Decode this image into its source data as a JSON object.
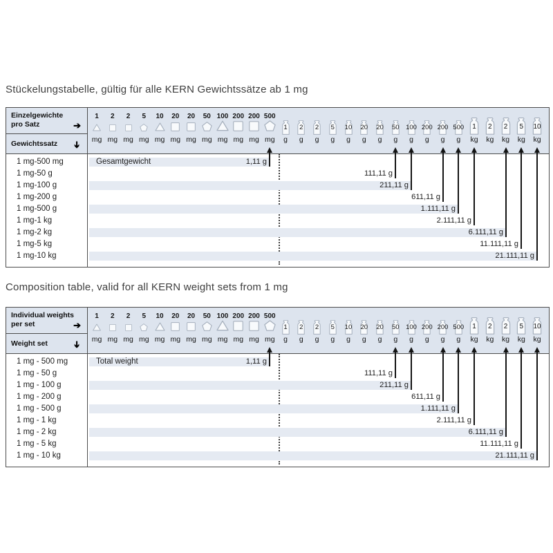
{
  "titles": {
    "de": "Stückelungstabelle, gültig für alle KERN Gewichtssätze ab 1 mg",
    "en": "Composition table, valid for all KERN weight sets from 1 mg"
  },
  "icons": {
    "right_arrow": "➔",
    "down_arrow": "➔"
  },
  "columns": [
    {
      "value": "1",
      "unit": "mg",
      "shape": "triangle",
      "size": "s"
    },
    {
      "value": "2",
      "unit": "mg",
      "shape": "square",
      "size": "s"
    },
    {
      "value": "2",
      "unit": "mg",
      "shape": "square",
      "size": "s"
    },
    {
      "value": "5",
      "unit": "mg",
      "shape": "pentagon",
      "size": "s"
    },
    {
      "value": "10",
      "unit": "mg",
      "shape": "triangle",
      "size": "m"
    },
    {
      "value": "20",
      "unit": "mg",
      "shape": "square",
      "size": "m"
    },
    {
      "value": "20",
      "unit": "mg",
      "shape": "square",
      "size": "m"
    },
    {
      "value": "50",
      "unit": "mg",
      "shape": "pentagon",
      "size": "m"
    },
    {
      "value": "100",
      "unit": "mg",
      "shape": "triangle",
      "size": "l"
    },
    {
      "value": "200",
      "unit": "mg",
      "shape": "square",
      "size": "l"
    },
    {
      "value": "200",
      "unit": "mg",
      "shape": "square",
      "size": "l"
    },
    {
      "value": "500",
      "unit": "mg",
      "shape": "pentagon",
      "size": "l"
    },
    {
      "value": "1",
      "unit": "g",
      "shape": "weight",
      "size": "s"
    },
    {
      "value": "2",
      "unit": "g",
      "shape": "weight",
      "size": "s"
    },
    {
      "value": "2",
      "unit": "g",
      "shape": "weight",
      "size": "s"
    },
    {
      "value": "5",
      "unit": "g",
      "shape": "weight",
      "size": "s"
    },
    {
      "value": "10",
      "unit": "g",
      "shape": "weight",
      "size": "s"
    },
    {
      "value": "20",
      "unit": "g",
      "shape": "weight",
      "size": "s"
    },
    {
      "value": "20",
      "unit": "g",
      "shape": "weight",
      "size": "s"
    },
    {
      "value": "50",
      "unit": "g",
      "shape": "weight",
      "size": "s"
    },
    {
      "value": "100",
      "unit": "g",
      "shape": "weight",
      "size": "s"
    },
    {
      "value": "200",
      "unit": "g",
      "shape": "weight",
      "size": "s"
    },
    {
      "value": "200",
      "unit": "g",
      "shape": "weight",
      "size": "s"
    },
    {
      "value": "500",
      "unit": "g",
      "shape": "weight",
      "size": "s"
    },
    {
      "value": "1",
      "unit": "kg",
      "shape": "weight",
      "size": "l"
    },
    {
      "value": "2",
      "unit": "kg",
      "shape": "weight",
      "size": "l"
    },
    {
      "value": "2",
      "unit": "kg",
      "shape": "weight",
      "size": "l"
    },
    {
      "value": "5",
      "unit": "kg",
      "shape": "weight",
      "size": "l"
    },
    {
      "value": "10",
      "unit": "kg",
      "shape": "weight",
      "size": "l"
    }
  ],
  "tables": [
    {
      "language": "de",
      "header_row1": [
        "Einzelgewichte",
        "pro Satz"
      ],
      "header_row2": "Gewichtssatz",
      "total_label": "Gesamtgewicht",
      "rows": [
        {
          "label": "1 mg-500 mg",
          "value": "1,11 g",
          "arrow_col": 11,
          "band": true
        },
        {
          "label": "1 mg-50 g",
          "value": "111,11 g",
          "arrow_col": 19,
          "band": false
        },
        {
          "label": "1 mg-100 g",
          "value": "211,11 g",
          "arrow_col": 20,
          "band": true
        },
        {
          "label": "1 mg-200 g",
          "value": "611,11 g",
          "arrow_col": 22,
          "band": false
        },
        {
          "label": "1 mg-500 g",
          "value": "1.111,11 g",
          "arrow_col": 23,
          "band": true
        },
        {
          "label": "1 mg-1 kg",
          "value": "2.111,11 g",
          "arrow_col": 24,
          "band": false
        },
        {
          "label": "1 mg-2 kg",
          "value": "6.111,11 g",
          "arrow_col": 26,
          "band": true
        },
        {
          "label": "1 mg-5 kg",
          "value": "11.111,11 g",
          "arrow_col": 27,
          "band": false
        },
        {
          "label": "1 mg-10 kg",
          "value": "21.111,11 g",
          "arrow_col": 28,
          "band": true
        }
      ]
    },
    {
      "language": "en",
      "header_row1": [
        "Individual weights",
        "per set"
      ],
      "header_row2": "Weight set",
      "total_label": "Total weight",
      "rows": [
        {
          "label": "1 mg - 500 mg",
          "value": "1,11 g",
          "arrow_col": 11,
          "band": true
        },
        {
          "label": "1 mg - 50 g",
          "value": "111,11 g",
          "arrow_col": 19,
          "band": false
        },
        {
          "label": "1 mg - 100 g",
          "value": "211,11 g",
          "arrow_col": 20,
          "band": true
        },
        {
          "label": "1 mg - 200 g",
          "value": "611,11 g",
          "arrow_col": 22,
          "band": false
        },
        {
          "label": "1 mg - 500 g",
          "value": "1.111,11 g",
          "arrow_col": 23,
          "band": true
        },
        {
          "label": "1 mg - 1 kg",
          "value": "2.111,11 g",
          "arrow_col": 24,
          "band": false
        },
        {
          "label": "1 mg - 2 kg",
          "value": "6.111,11 g",
          "arrow_col": 26,
          "band": true
        },
        {
          "label": "1 mg - 5 kg",
          "value": "11.111,11 g",
          "arrow_col": 27,
          "band": false
        },
        {
          "label": "1 mg - 10 kg",
          "value": "21.111,11 g",
          "arrow_col": 28,
          "band": true
        }
      ]
    }
  ],
  "colors": {
    "header_bg": "#dde4ee",
    "band_bg": "#e5eaf2",
    "border": "#4c4c4c",
    "arrow": "#131313",
    "icon_stroke": "#a6b0bd",
    "icon_fill": "#f8fafc",
    "text": "#1d1d1d",
    "title_text": "#3e3e3e"
  }
}
